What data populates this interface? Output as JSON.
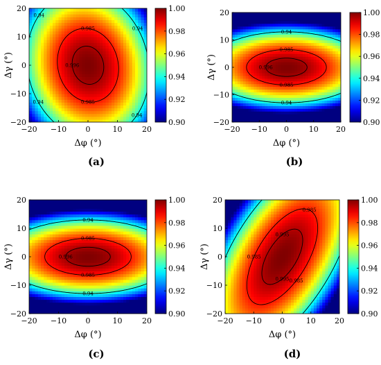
{
  "chart_data": [
    {
      "type": "heatmap",
      "panel_label": "(a)",
      "xlabel": "Δφ (°)",
      "ylabel": "Δγ (°)",
      "x_ticks": [
        "−20",
        "−10",
        "0",
        "10",
        "20"
      ],
      "y_ticks": [
        "−20",
        "−10",
        "0",
        "10",
        "20"
      ],
      "xlim": [
        -20,
        20
      ],
      "ylim": [
        -20,
        20
      ],
      "colorbar": {
        "range": [
          0.9,
          1.0
        ],
        "ticks": [
          "0.90",
          "0.92",
          "0.94",
          "0.96",
          "0.98",
          "1.00"
        ]
      },
      "field": {
        "center": [
          0,
          0
        ],
        "sx": 26.7,
        "sy": 33.3,
        "rho": 0.1
      },
      "contours": [
        {
          "level": 0.94,
          "labels": [
            "0.94",
            "0.94",
            "0.94",
            "0.94"
          ]
        },
        {
          "level": 0.985,
          "labels": [
            "0.985",
            "0.985"
          ]
        },
        {
          "level": 0.996,
          "labels": [
            "0.996"
          ]
        }
      ]
    },
    {
      "type": "heatmap",
      "panel_label": "(b)",
      "xlabel": "Δφ (°)",
      "ylabel": "Δγ (°)",
      "x_ticks": [
        "−20",
        "−10",
        "0",
        "10",
        "20"
      ],
      "y_ticks": [
        "−20",
        "−10",
        "0",
        "10",
        "20"
      ],
      "xlim": [
        -20,
        20
      ],
      "ylim": [
        -20,
        20
      ],
      "colorbar": {
        "range": [
          0.9,
          1.0
        ],
        "ticks": [
          "0.90",
          "0.92",
          "0.94",
          "0.96",
          "0.98",
          "1.00"
        ]
      },
      "field": {
        "center": [
          0,
          0
        ],
        "sx": 37.9,
        "sy": 16.7,
        "rho": 0
      },
      "contours": [
        {
          "level": 0.94,
          "labels": [
            "0.94",
            "0.94"
          ]
        },
        {
          "level": 0.985,
          "labels": [
            "0.985",
            "0.985"
          ]
        },
        {
          "level": 0.996,
          "labels": [
            "0.996"
          ]
        }
      ]
    },
    {
      "type": "heatmap",
      "panel_label": "(c)",
      "xlabel": "Δφ (°)",
      "ylabel": "Δγ (°)",
      "x_ticks": [
        "−20",
        "−10",
        "0",
        "10",
        "20"
      ],
      "y_ticks": [
        "−20",
        "−10",
        "0",
        "10",
        "20"
      ],
      "xlim": [
        -20,
        20
      ],
      "ylim": [
        -20,
        20
      ],
      "colorbar": {
        "range": [
          0.9,
          1.0
        ],
        "ticks": [
          "0.90",
          "0.92",
          "0.94",
          "0.96",
          "0.98",
          "1.00"
        ]
      },
      "field": {
        "center": [
          0,
          0
        ],
        "sx": 37.9,
        "sy": 16.7,
        "rho": 0
      },
      "contours": [
        {
          "level": 0.94,
          "labels": [
            "0.94",
            "0.94"
          ]
        },
        {
          "level": 0.985,
          "labels": [
            "0.985",
            "0.985"
          ]
        },
        {
          "level": 0.996,
          "labels": [
            "0.996"
          ]
        }
      ]
    },
    {
      "type": "heatmap",
      "panel_label": "(d)",
      "xlabel": "Δφ (°)",
      "ylabel": "Δγ (°)",
      "x_ticks": [
        "−20",
        "−10",
        "0",
        "10",
        "20"
      ],
      "y_ticks": [
        "−20",
        "−10",
        "0",
        "10",
        "20"
      ],
      "xlim": [
        -20,
        20
      ],
      "ylim": [
        -20,
        20
      ],
      "colorbar": {
        "range": [
          0.9,
          1.0
        ],
        "ticks": [
          "0.90",
          "0.92",
          "0.94",
          "0.96",
          "0.98",
          "1.00"
        ]
      },
      "field": {
        "center": [
          0,
          0
        ],
        "sx": 25.6,
        "sy": 34.8,
        "rho": -0.6
      },
      "contours": [
        {
          "level": 0.94,
          "labels": []
        },
        {
          "level": 0.985,
          "labels": [
            "0.985",
            "0.985",
            "0.985"
          ]
        },
        {
          "level": 0.995,
          "labels": [
            "0.995",
            "0.995"
          ]
        }
      ]
    }
  ]
}
